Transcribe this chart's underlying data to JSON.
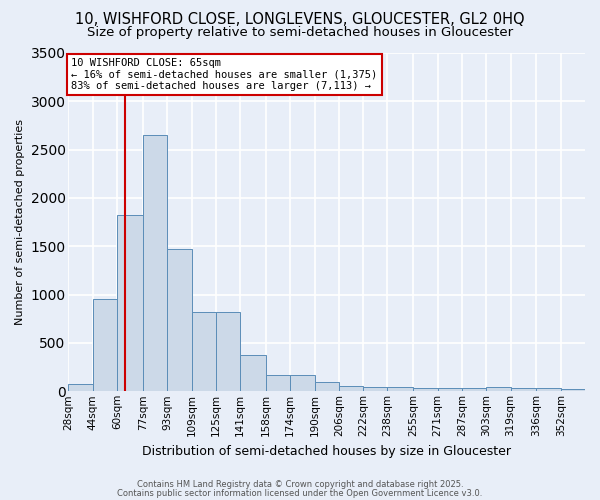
{
  "title": "10, WISHFORD CLOSE, LONGLEVENS, GLOUCESTER, GL2 0HQ",
  "subtitle": "Size of property relative to semi-detached houses in Gloucester",
  "xlabel": "Distribution of semi-detached houses by size in Gloucester",
  "ylabel": "Number of semi-detached properties",
  "bin_labels": [
    "28sqm",
    "44sqm",
    "60sqm",
    "77sqm",
    "93sqm",
    "109sqm",
    "125sqm",
    "141sqm",
    "158sqm",
    "174sqm",
    "190sqm",
    "206sqm",
    "222sqm",
    "238sqm",
    "255sqm",
    "271sqm",
    "287sqm",
    "303sqm",
    "319sqm",
    "336sqm",
    "352sqm"
  ],
  "bin_edges": [
    28,
    44,
    60,
    77,
    93,
    109,
    125,
    141,
    158,
    174,
    190,
    206,
    222,
    238,
    255,
    271,
    287,
    303,
    319,
    336,
    352
  ],
  "bar_heights": [
    80,
    950,
    1825,
    2650,
    1475,
    825,
    825,
    375,
    170,
    170,
    100,
    55,
    40,
    40,
    30,
    30,
    30,
    40,
    30,
    30,
    25
  ],
  "bar_color": "#ccd9e8",
  "bar_edge_color": "#5b8db8",
  "property_size": 65,
  "vline_color": "#cc0000",
  "annotation_title": "10 WISHFORD CLOSE: 65sqm",
  "annotation_line2": "← 16% of semi-detached houses are smaller (1,375)",
  "annotation_line3": "83% of semi-detached houses are larger (7,113) →",
  "annotation_box_color": "#ffffff",
  "annotation_box_edge": "#cc0000",
  "ylim": [
    0,
    3500
  ],
  "yticks": [
    0,
    500,
    1000,
    1500,
    2000,
    2500,
    3000,
    3500
  ],
  "footer1": "Contains HM Land Registry data © Crown copyright and database right 2025.",
  "footer2": "Contains public sector information licensed under the Open Government Licence v3.0.",
  "bg_color": "#e8eef8",
  "grid_color": "#ffffff",
  "title_fontsize": 10.5,
  "subtitle_fontsize": 9.5,
  "annotation_fontsize": 7.5,
  "ylabel_fontsize": 8,
  "xlabel_fontsize": 9
}
